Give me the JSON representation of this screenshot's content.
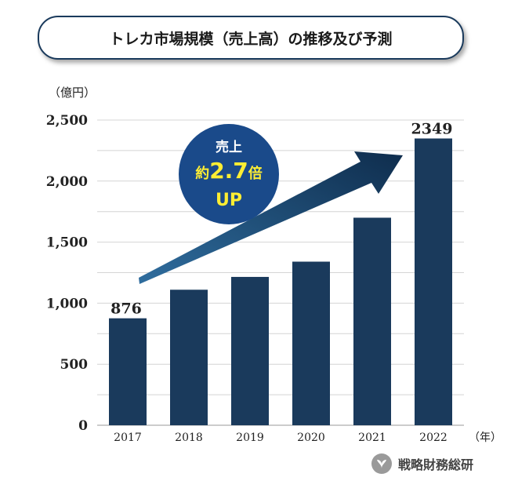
{
  "title": "トレカ市場規模（売上高）の推移及び予測",
  "unit_label": "（億円）",
  "x_unit_label": "（年）",
  "badge": {
    "line1": "売上",
    "prefix": "約",
    "value": "2.7",
    "suffix": "倍",
    "line3": "UP"
  },
  "source": "戦略財務総研",
  "colors": {
    "bar": "#1a3a5c",
    "arrow_start": "#2f6d9e",
    "arrow_end": "#0f2d4d",
    "badge": "#1a4a8a",
    "badge_text": "#ffee33"
  },
  "chart_data": {
    "type": "bar",
    "categories": [
      "2017",
      "2018",
      "2019",
      "2020",
      "2021",
      "2022"
    ],
    "values": [
      876,
      1110,
      1215,
      1340,
      1700,
      2349
    ],
    "data_labels": {
      "2017": "876",
      "2022": "2349"
    },
    "ylim": [
      0,
      2500
    ],
    "yticks": [
      0,
      500,
      1000,
      1500,
      2000,
      2500
    ],
    "ytick_labels": [
      "0",
      "500",
      "1,000",
      "1,500",
      "2,000",
      "2,500"
    ],
    "grid": true,
    "title": "トレカ市場規模（売上高）の推移及び予測",
    "xlabel": "",
    "ylabel": "（億円）"
  }
}
